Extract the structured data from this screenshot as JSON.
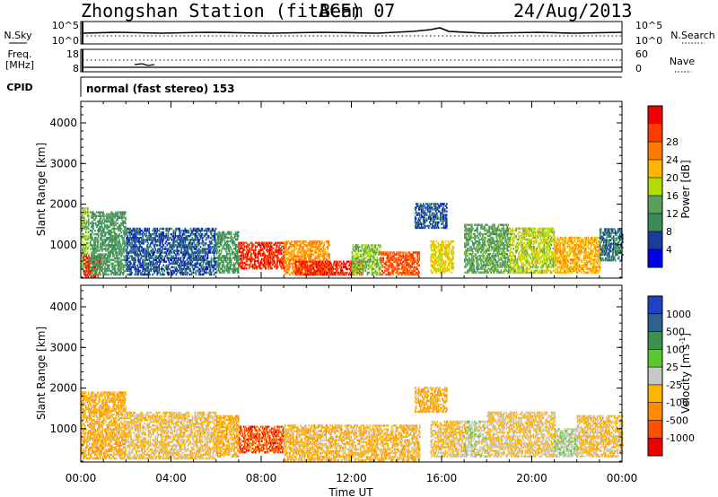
{
  "header": {
    "station": "Zhongshan Station (fitACF)",
    "beam": "Beam 07",
    "date": "24/Aug/2013"
  },
  "top_panels": {
    "nsky": {
      "left_label": "N.Sky",
      "left_ticks": [
        "10^5",
        "10^0"
      ],
      "right_label": "N.Search",
      "right_ticks": [
        "10^5",
        "10^0"
      ]
    },
    "freq": {
      "left_label": "Freq.",
      "left_unit": "[MHz]",
      "left_ticks": [
        "18",
        "8"
      ],
      "right_label": "Nave",
      "right_ticks": [
        "60",
        "0"
      ]
    },
    "cpid": {
      "label": "CPID",
      "value": "normal (fast stereo) 153"
    }
  },
  "colors": {
    "power": [
      "#0000ee",
      "#1a3c9c",
      "#3c8c5a",
      "#5aa05a",
      "#b4dc00",
      "#ffb400",
      "#ff7800",
      "#ff3c00",
      "#ee0000"
    ],
    "velocity": [
      "#2040c8",
      "#30608c",
      "#3c9050",
      "#5ac830",
      "#c8c8c8",
      "#ffb400",
      "#ff8c00",
      "#ff5000",
      "#ee0000"
    ]
  },
  "chart_data": [
    {
      "type": "heatmap",
      "quantity": "power",
      "ylabel": "Slant Range [km]",
      "ylim": [
        180,
        4530
      ],
      "yticks": [
        "1000",
        "2000",
        "3000",
        "4000"
      ],
      "xlim": [
        "00:00",
        "00:00"
      ],
      "colorbar": {
        "label": "Power [dB]",
        "ticks": [
          "4",
          "8",
          "12",
          "16",
          "20",
          "24",
          "28"
        ],
        "range": [
          0,
          32
        ]
      },
      "patches": [
        {
          "t": [
            0.0,
            0.35
          ],
          "r": [
            300,
            1900
          ],
          "value": 14
        },
        {
          "t": [
            0.1,
            0.9
          ],
          "r": [
            200,
            700
          ],
          "value": 28
        },
        {
          "t": [
            0.4,
            2.0
          ],
          "r": [
            250,
            1800
          ],
          "value": 10
        },
        {
          "t": [
            2.0,
            6.0
          ],
          "r": [
            250,
            1400
          ],
          "value": 6
        },
        {
          "t": [
            6.0,
            7.0
          ],
          "r": [
            300,
            1300
          ],
          "value": 10
        },
        {
          "t": [
            7.0,
            9.0
          ],
          "r": [
            400,
            1050
          ],
          "value": 28
        },
        {
          "t": [
            9.0,
            11.0
          ],
          "r": [
            250,
            1100
          ],
          "value": 22
        },
        {
          "t": [
            9.5,
            12.5
          ],
          "r": [
            250,
            600
          ],
          "value": 28
        },
        {
          "t": [
            12.0,
            13.3
          ],
          "r": [
            250,
            1000
          ],
          "value": 14
        },
        {
          "t": [
            13.3,
            15.0
          ],
          "r": [
            250,
            800
          ],
          "value": 26
        },
        {
          "t": [
            14.8,
            16.2
          ],
          "r": [
            1400,
            2000
          ],
          "value": 6
        },
        {
          "t": [
            15.5,
            16.5
          ],
          "r": [
            300,
            1100
          ],
          "value": 18
        },
        {
          "t": [
            17.0,
            19.0
          ],
          "r": [
            300,
            1500
          ],
          "value": 12
        },
        {
          "t": [
            19.0,
            21.0
          ],
          "r": [
            300,
            1400
          ],
          "value": 16
        },
        {
          "t": [
            21.0,
            23.0
          ],
          "r": [
            300,
            1200
          ],
          "value": 20
        },
        {
          "t": [
            23.0,
            24.0
          ],
          "r": [
            600,
            1400
          ],
          "value": 8
        }
      ]
    },
    {
      "type": "heatmap",
      "quantity": "velocity",
      "ylabel": "Slant Range [km]",
      "ylim": [
        180,
        4530
      ],
      "yticks": [
        "1000",
        "2000",
        "3000",
        "4000"
      ],
      "xlabel": "Time UT",
      "xticks": [
        "00:00",
        "04:00",
        "08:00",
        "12:00",
        "16:00",
        "20:00",
        "00:00"
      ],
      "colorbar": {
        "label": "Velocity [m s",
        "label_sup": "-1",
        "label_end": "]",
        "ticks": [
          "1000",
          "500",
          "100",
          "25",
          "-25",
          "-100",
          "-500",
          "-1000"
        ],
        "range": [
          -1200,
          1200
        ]
      },
      "patches": [
        {
          "t": [
            0.0,
            2.0
          ],
          "r": [
            250,
            1900
          ],
          "value": -300
        },
        {
          "t": [
            2.0,
            6.0
          ],
          "r": [
            250,
            1400
          ],
          "value": -200
        },
        {
          "t": [
            6.0,
            7.0
          ],
          "r": [
            300,
            1300
          ],
          "value": -300
        },
        {
          "t": [
            7.0,
            9.0
          ],
          "r": [
            400,
            1050
          ],
          "value": -800
        },
        {
          "t": [
            9.0,
            15.0
          ],
          "r": [
            200,
            1100
          ],
          "value": -250
        },
        {
          "t": [
            14.8,
            16.2
          ],
          "r": [
            1400,
            2000
          ],
          "value": -300
        },
        {
          "t": [
            15.5,
            17.0
          ],
          "r": [
            300,
            1200
          ],
          "value": -200
        },
        {
          "t": [
            17.0,
            18.0
          ],
          "r": [
            300,
            1200
          ],
          "value": 0
        },
        {
          "t": [
            18.0,
            21.0
          ],
          "r": [
            300,
            1400
          ],
          "value": -150
        },
        {
          "t": [
            21.0,
            22.0
          ],
          "r": [
            300,
            1000
          ],
          "value": 60
        },
        {
          "t": [
            22.0,
            24.0
          ],
          "r": [
            300,
            1300
          ],
          "value": -200
        }
      ]
    }
  ]
}
